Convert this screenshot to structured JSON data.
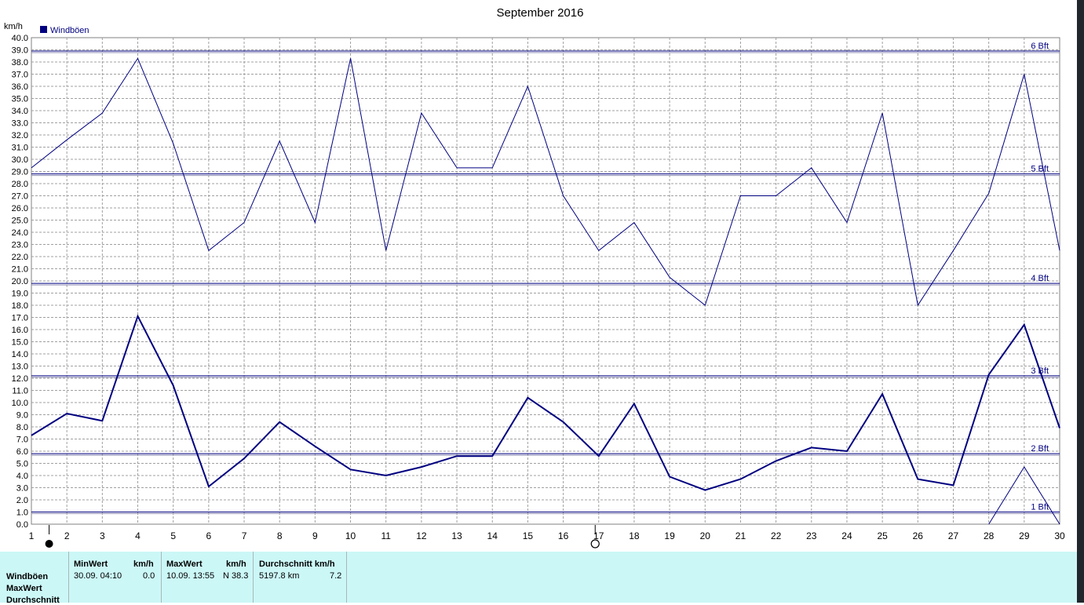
{
  "chart_data": {
    "type": "line",
    "title": "September 2016",
    "ylabel": "km/h",
    "ylim": [
      0,
      40
    ],
    "ytick_step": 1,
    "categories": [
      "1",
      "2",
      "3",
      "4",
      "5",
      "6",
      "7",
      "8",
      "9",
      "10",
      "11",
      "12",
      "13",
      "14",
      "15",
      "16",
      "17",
      "18",
      "19",
      "20",
      "21",
      "22",
      "23",
      "24",
      "25",
      "26",
      "27",
      "28",
      "29",
      "30"
    ],
    "grid": true,
    "legend": {
      "position": "top-left",
      "entries": [
        "Windböen"
      ]
    },
    "series": [
      {
        "name": "Windböen",
        "values": [
          29.3,
          31.6,
          33.8,
          38.3,
          31.3,
          22.5,
          24.8,
          31.5,
          24.8,
          38.3,
          22.5,
          33.8,
          29.3,
          29.3,
          36.0,
          27.0,
          22.5,
          24.8,
          20.3,
          18.0,
          27.0,
          27.0,
          29.3,
          24.8,
          33.8,
          18.0,
          22.5,
          27.2,
          37.0,
          22.5
        ],
        "color": "#000080",
        "width": 1
      },
      {
        "values": [
          7.3,
          9.1,
          8.5,
          17.1,
          11.4,
          3.1,
          5.4,
          8.4,
          6.4,
          4.5,
          4.0,
          4.7,
          5.6,
          5.6,
          10.4,
          8.4,
          5.6,
          9.9,
          3.9,
          2.8,
          3.7,
          5.2,
          6.3,
          6.0,
          10.7,
          3.7,
          3.2,
          12.3,
          16.4,
          7.9
        ],
        "color": "#000080",
        "width": 2
      },
      {
        "x": [
          28,
          29,
          30
        ],
        "values": [
          0.0,
          4.7,
          0.0
        ],
        "color": "#000080",
        "width": 1
      }
    ],
    "beaufort_lines": [
      {
        "label": "1 Bft",
        "value": 1.0
      },
      {
        "label": "2 Bft",
        "value": 5.8
      },
      {
        "label": "3 Bft",
        "value": 12.2
      },
      {
        "label": "4 Bft",
        "value": 19.8
      },
      {
        "label": "5 Bft",
        "value": 28.8
      },
      {
        "label": "6 Bft",
        "value": 38.9
      }
    ],
    "moon_phases": [
      {
        "day": 1.5,
        "phase": "new"
      },
      {
        "day": 16.9,
        "phase": "full"
      }
    ]
  },
  "stats": {
    "row_labels": [
      "Windböen",
      "MaxWert",
      "Durchschnitt"
    ],
    "min": {
      "header": "MinWert",
      "unit": "km/h",
      "date": "30.09.  04:10",
      "value": "0.0"
    },
    "max": {
      "header": "MaxWert",
      "unit": "km/h",
      "date": "10.09.  13:55",
      "value": "N 38.3"
    },
    "avg": {
      "header": "Durchschnitt km/h",
      "distance": "5197.8 km",
      "value": "7.2"
    }
  }
}
